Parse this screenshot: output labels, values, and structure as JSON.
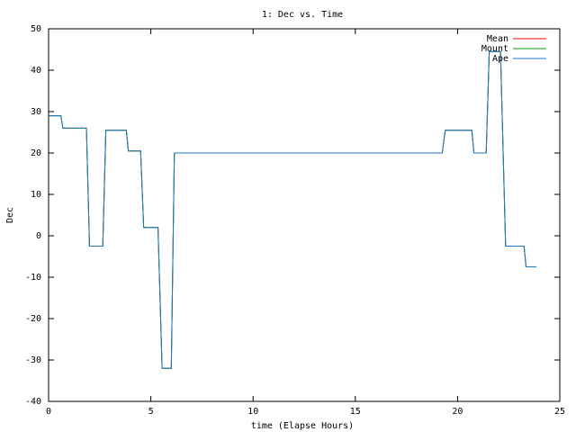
{
  "chart_data": {
    "type": "line",
    "title": "1: Dec vs. Time",
    "x_label": "time (Elapse Hours)",
    "y_label": "Dec",
    "x": [
      0,
      0.6,
      0.7,
      1.85,
      2.0,
      2.65,
      2.8,
      3.8,
      3.9,
      4.5,
      4.65,
      5.35,
      5.55,
      6.0,
      6.15,
      19.25,
      19.4,
      20.7,
      20.8,
      21.4,
      21.55,
      22.1,
      22.35,
      23.25,
      23.35,
      23.85
    ],
    "series": [
      {
        "name": "Mean",
        "color": "#ff0000",
        "values": [
          29,
          29,
          26,
          26,
          -2.5,
          -2.5,
          25.5,
          25.5,
          20.5,
          20.5,
          2,
          2,
          -32,
          -32,
          20,
          20,
          25.5,
          25.5,
          20,
          20,
          44.5,
          44.5,
          -2.5,
          -2.5,
          -7.5,
          -7.5
        ]
      },
      {
        "name": "Mount",
        "color": "#00a000",
        "values": [
          29,
          29,
          26,
          26,
          -2.5,
          -2.5,
          25.5,
          25.5,
          20.5,
          20.5,
          2,
          2,
          -32,
          -32,
          20,
          20,
          25.5,
          25.5,
          20,
          20,
          44.5,
          44.5,
          -2.5,
          -2.5,
          -7.5,
          -7.5
        ]
      },
      {
        "name": "Ape",
        "color": "#1e78c8",
        "values": [
          29,
          29,
          26,
          26,
          -2.5,
          -2.5,
          25.5,
          25.5,
          20.5,
          20.5,
          2,
          2,
          -32,
          -32,
          20,
          20,
          25.5,
          25.5,
          20,
          20,
          44.5,
          44.5,
          -2.5,
          -2.5,
          -7.5,
          -7.5
        ]
      }
    ],
    "xlim": [
      0,
      25
    ],
    "xticks": [
      0,
      5,
      10,
      15,
      20,
      25
    ],
    "ylim": [
      -40,
      50
    ],
    "yticks": [
      -40,
      -30,
      -20,
      -10,
      0,
      10,
      20,
      30,
      40,
      50
    ],
    "legend": "top-right"
  }
}
